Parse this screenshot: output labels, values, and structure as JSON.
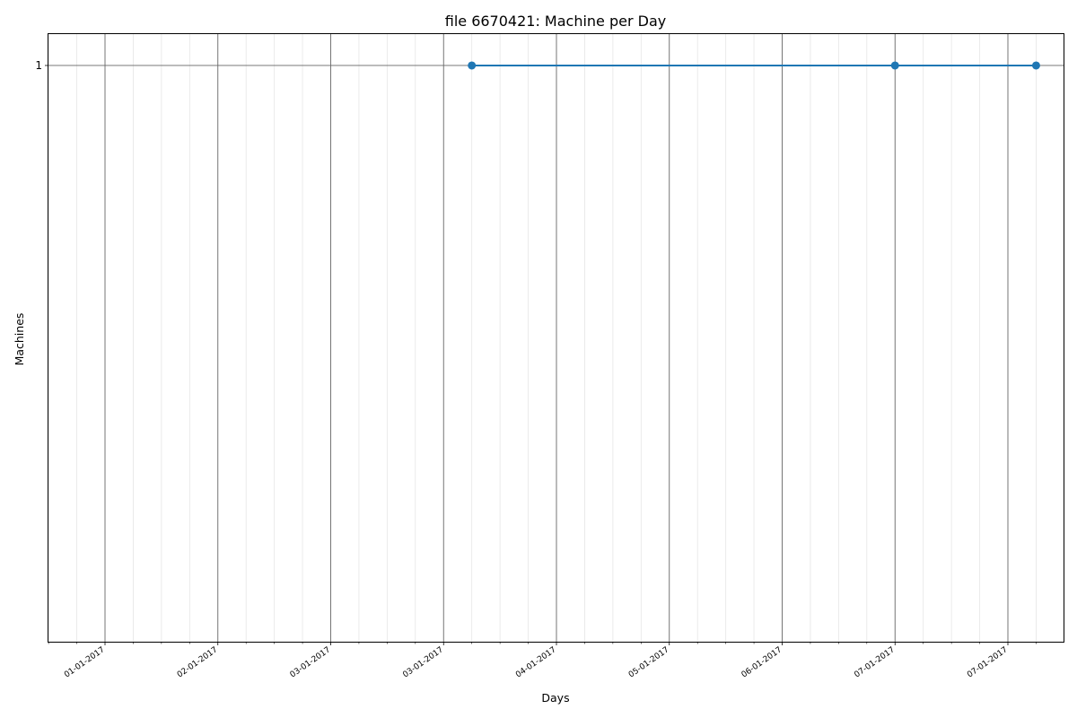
{
  "chart_data": {
    "type": "line",
    "title": "file 6670421: Machine per Day",
    "xlabel": "Days",
    "ylabel": "Machines",
    "x_tick_labels": [
      "01-01-2017",
      "02-01-2017",
      "03-01-2017",
      "03-01-2017",
      "04-01-2017",
      "05-01-2017",
      "06-01-2017",
      "07-01-2017",
      "07-01-2017"
    ],
    "y_ticks": [
      1
    ],
    "ylim": [
      0,
      1.056
    ],
    "grid": true,
    "series": [
      {
        "color": "#1f77b4",
        "x_index": [
          3.25,
          7.0,
          8.25
        ],
        "values": [
          1,
          1,
          1
        ]
      }
    ]
  }
}
